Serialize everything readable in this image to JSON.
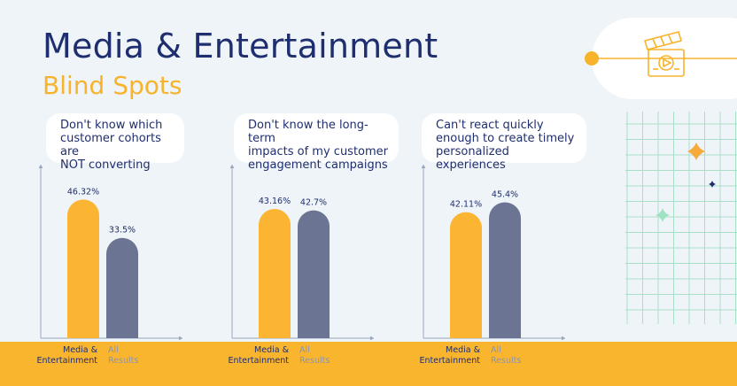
{
  "header": {
    "title": "Media & Entertainment",
    "subtitle": "Blind Spots"
  },
  "colors": {
    "accent": "#fab52e",
    "bar_media": "#fbb533",
    "bar_all": "#6b7593",
    "navy": "#1f2e6e",
    "grid": "#a9dfc9"
  },
  "icon": "clapperboard-icon",
  "chart_data": [
    {
      "type": "bar",
      "title": "Don't know which\ncustomer cohorts are\nNOT converting",
      "categories": [
        "Media &\nEntertainment",
        "All\nResults"
      ],
      "values": [
        46.32,
        33.5
      ],
      "value_labels": [
        "46.32%",
        "33.5%"
      ],
      "ylim": [
        0,
        55
      ]
    },
    {
      "type": "bar",
      "title": "Don't know the long-term\nimpacts of my customer\nengagement campaigns",
      "categories": [
        "Media &\nEntertainment",
        "All\nResults"
      ],
      "values": [
        43.16,
        42.7
      ],
      "value_labels": [
        "43.16%",
        "42.7%"
      ],
      "ylim": [
        0,
        55
      ]
    },
    {
      "type": "bar",
      "title": "Can't react quickly\nenough to create timely\npersonalized experiences",
      "categories": [
        "Media &\nEntertainment",
        "All\nResults"
      ],
      "values": [
        42.11,
        45.4
      ],
      "value_labels": [
        "42.11%",
        "45.4%"
      ],
      "ylim": [
        0,
        55
      ]
    }
  ]
}
